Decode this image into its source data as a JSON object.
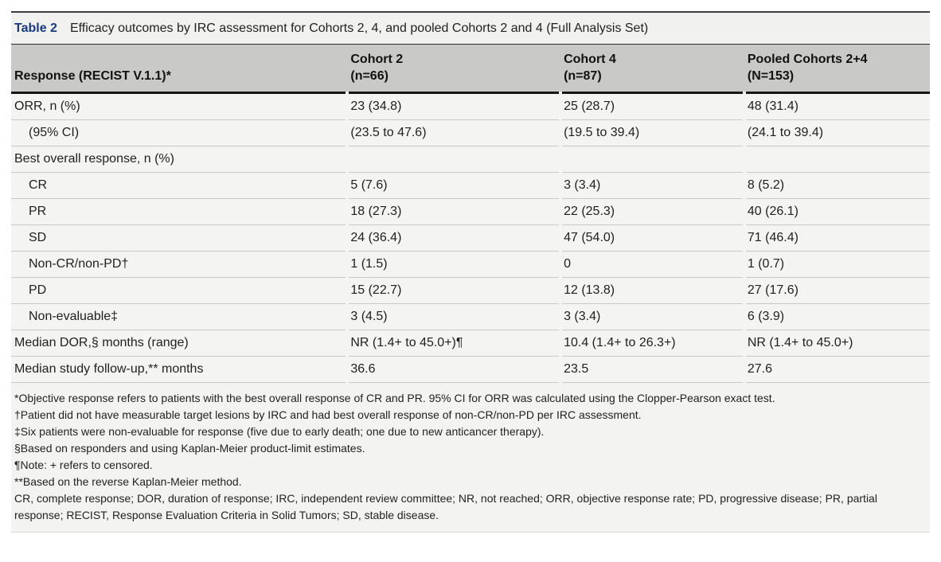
{
  "colors": {
    "accent_navy": "#1a3a7c",
    "header_bg": "#c9c9c8",
    "row_bg": "#f4f4f2",
    "title_bg": "#f1f1ef"
  },
  "table": {
    "label": "Table 2",
    "title": "Efficacy outcomes by IRC assessment for Cohorts 2, 4, and pooled Cohorts 2 and 4 (Full Analysis Set)",
    "columns": [
      {
        "label": "Response (RECIST V.1.1)*",
        "sub": ""
      },
      {
        "label": "Cohort 2",
        "sub": "(n=66)"
      },
      {
        "label": "Cohort 4",
        "sub": "(n=87)"
      },
      {
        "label": "Pooled Cohorts 2+4",
        "sub": "(N=153)"
      }
    ],
    "rows": [
      {
        "label": "ORR, n (%)",
        "indent": false,
        "values": [
          "23 (34.8)",
          "25 (28.7)",
          "48 (31.4)"
        ]
      },
      {
        "label": "(95% CI)",
        "indent": true,
        "values": [
          "(23.5 to 47.6)",
          "(19.5 to 39.4)",
          "(24.1 to 39.4)"
        ]
      },
      {
        "label": "Best overall response, n (%)",
        "indent": false,
        "values": [
          "",
          "",
          ""
        ]
      },
      {
        "label": "CR",
        "indent": true,
        "values": [
          "5 (7.6)",
          "3 (3.4)",
          "8 (5.2)"
        ]
      },
      {
        "label": "PR",
        "indent": true,
        "values": [
          "18 (27.3)",
          "22 (25.3)",
          "40 (26.1)"
        ]
      },
      {
        "label": "SD",
        "indent": true,
        "values": [
          "24 (36.4)",
          "47 (54.0)",
          "71 (46.4)"
        ]
      },
      {
        "label": "Non-CR/non-PD†",
        "indent": true,
        "values": [
          "1 (1.5)",
          "0",
          "1 (0.7)"
        ]
      },
      {
        "label": "PD",
        "indent": true,
        "values": [
          "15 (22.7)",
          "12 (13.8)",
          "27 (17.6)"
        ]
      },
      {
        "label": "Non-evaluable‡",
        "indent": true,
        "values": [
          "3 (4.5)",
          "3 (3.4)",
          "6 (3.9)"
        ]
      },
      {
        "label": "Median DOR,§ months (range)",
        "indent": false,
        "values": [
          "NR (1.4+ to 45.0+)¶",
          "10.4 (1.4+ to 26.3+)",
          "NR (1.4+ to 45.0+)"
        ]
      },
      {
        "label": "Median study follow-up,** months",
        "indent": false,
        "values": [
          "36.6",
          "23.5",
          "27.6"
        ]
      }
    ],
    "footnotes": [
      "*Objective response refers to patients with the best overall response of CR and PR. 95% CI for ORR was calculated using the Clopper-Pearson exact test.",
      "†Patient did not have measurable target lesions by IRC and had best overall response of non-CR/non-PD per IRC assessment.",
      "‡Six patients were non-evaluable for response (five due to early death; one due to new anticancer therapy).",
      "§Based on responders and using Kaplan-Meier product-limit estimates.",
      "¶Note: + refers to censored.",
      "**Based on the reverse Kaplan-Meier method.",
      "CR, complete response; DOR, duration of response; IRC, independent review committee; NR, not reached; ORR, objective response rate; PD, progressive disease; PR, partial response; RECIST, Response Evaluation Criteria in Solid Tumors; SD, stable disease."
    ]
  }
}
